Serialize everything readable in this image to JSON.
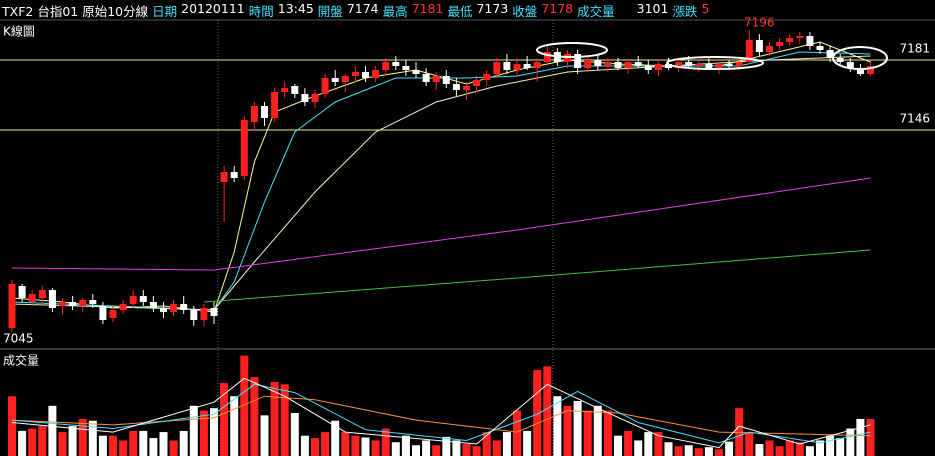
{
  "chart_data": {
    "type": "candlestick",
    "instrument": "TXF2 台指01 原始10分線",
    "fields": [
      {
        "label": "日期",
        "value": "20120111",
        "color": "#ffffff"
      },
      {
        "label": "時間",
        "value": "13:45",
        "color": "#ffffff"
      },
      {
        "label": "開盤",
        "value": 7174,
        "color": "#ffffff"
      },
      {
        "label": "最高",
        "value": 7181,
        "color": "#ff3030"
      },
      {
        "label": "最低",
        "value": 7173,
        "color": "#ffffff"
      },
      {
        "label": "收盤",
        "value": 7178,
        "color": "#ff3030"
      },
      {
        "label": "成交量",
        "value": 3101,
        "color": "#ffffff"
      },
      {
        "label": "漲跌",
        "value": 5,
        "color": "#ff3030"
      }
    ],
    "title": "K線圖",
    "up_color": "#ff2020",
    "down_color": "#ffffff",
    "open": [
      7047,
      7068,
      7060,
      7062,
      7066,
      7058,
      7060,
      7058,
      7061,
      7058,
      7052,
      7056,
      7059,
      7063,
      7060,
      7057,
      7055,
      7059,
      7056,
      7051,
      7057,
      7120,
      7125,
      7123,
      7150,
      7158,
      7152,
      7165,
      7168,
      7164,
      7160,
      7164,
      7172,
      7170,
      7173,
      7175,
      7172,
      7176,
      7180,
      7178,
      7176,
      7174,
      7170,
      7173,
      7169,
      7166,
      7168,
      7171,
      7174,
      7180,
      7176,
      7179,
      7177,
      7180,
      7185,
      7180,
      7184,
      7177,
      7181,
      7178,
      7180,
      7177,
      7180,
      7178,
      7176,
      7179,
      7177,
      7180,
      7178,
      7179,
      7177,
      7179,
      7178,
      7180,
      7191,
      7185,
      7188,
      7190,
      7192,
      7193,
      7188,
      7186,
      7182,
      7180,
      7177,
      7174
    ],
    "high": [
      7071,
      7069,
      7066,
      7068,
      7067,
      7062,
      7063,
      7062,
      7064,
      7060,
      7058,
      7061,
      7066,
      7066,
      7063,
      7060,
      7061,
      7063,
      7058,
      7059,
      7060,
      7128,
      7128,
      7153,
      7160,
      7160,
      7167,
      7170,
      7169,
      7167,
      7166,
      7174,
      7176,
      7174,
      7178,
      7178,
      7178,
      7182,
      7183,
      7181,
      7180,
      7177,
      7175,
      7176,
      7172,
      7170,
      7173,
      7176,
      7182,
      7184,
      7182,
      7183,
      7182,
      7188,
      7187,
      7186,
      7186,
      7183,
      7184,
      7182,
      7182,
      7181,
      7183,
      7181,
      7180,
      7182,
      7181,
      7183,
      7181,
      7182,
      7180,
      7181,
      7182,
      7196,
      7194,
      7190,
      7192,
      7194,
      7195,
      7195,
      7190,
      7188,
      7184,
      7182,
      7179,
      7181
    ],
    "low": [
      7045,
      7060,
      7058,
      7059,
      7055,
      7054,
      7056,
      7055,
      7057,
      7049,
      7050,
      7054,
      7057,
      7058,
      7055,
      7052,
      7053,
      7054,
      7048,
      7048,
      7049,
      7100,
      7120,
      7121,
      7146,
      7148,
      7150,
      7162,
      7162,
      7158,
      7157,
      7162,
      7168,
      7165,
      7170,
      7170,
      7170,
      7173,
      7176,
      7173,
      7172,
      7168,
      7166,
      7167,
      7163,
      7161,
      7165,
      7168,
      7172,
      7174,
      7173,
      7176,
      7170,
      7178,
      7178,
      7177,
      7174,
      7175,
      7176,
      7175,
      7176,
      7174,
      7177,
      7174,
      7173,
      7176,
      7175,
      7177,
      7175,
      7176,
      7174,
      7176,
      7176,
      7179,
      7183,
      7183,
      7186,
      7188,
      7189,
      7186,
      7184,
      7180,
      7178,
      7175,
      7173,
      7173
    ],
    "close": [
      7069,
      7062,
      7064,
      7066,
      7057,
      7060,
      7058,
      7061,
      7059,
      7051,
      7056,
      7059,
      7063,
      7060,
      7057,
      7055,
      7059,
      7056,
      7051,
      7057,
      7053,
      7125,
      7122,
      7151,
      7158,
      7152,
      7165,
      7167,
      7164,
      7160,
      7164,
      7172,
      7170,
      7173,
      7175,
      7172,
      7176,
      7180,
      7178,
      7176,
      7174,
      7170,
      7173,
      7169,
      7166,
      7168,
      7171,
      7174,
      7180,
      7176,
      7179,
      7177,
      7180,
      7185,
      7180,
      7184,
      7177,
      7181,
      7178,
      7180,
      7177,
      7180,
      7178,
      7176,
      7179,
      7177,
      7180,
      7178,
      7179,
      7177,
      7179,
      7178,
      7180,
      7191,
      7185,
      7188,
      7190,
      7192,
      7193,
      7188,
      7186,
      7182,
      7180,
      7177,
      7174,
      7178
    ],
    "ylim": [
      7037,
      7201
    ],
    "yticks": [
      7181,
      7146
    ],
    "high_label": 7196,
    "low_label": 7045,
    "ma_lines": [
      {
        "color": "#ffff80",
        "x": [
          0,
          5,
          10,
          15,
          20,
          22,
          24,
          26,
          30,
          35,
          40,
          45,
          50,
          55,
          60,
          65,
          70,
          75,
          80,
          85
        ],
        "values": [
          7062,
          7060,
          7057,
          7058,
          7055,
          7085,
          7130,
          7155,
          7163,
          7172,
          7176,
          7169,
          7176,
          7181,
          7179,
          7178,
          7178,
          7184,
          7190,
          7180
        ]
      },
      {
        "color": "#40e0ff",
        "x": [
          0,
          10,
          20,
          22,
          25,
          28,
          32,
          38,
          45,
          50,
          55,
          65,
          72,
          78,
          85
        ],
        "values": [
          7060,
          7058,
          7056,
          7070,
          7110,
          7145,
          7160,
          7172,
          7172,
          7173,
          7178,
          7178,
          7178,
          7185,
          7184
        ]
      },
      {
        "color": "#f0f0c0",
        "x": [
          0,
          20,
          24,
          30,
          36,
          42,
          48,
          55,
          65,
          75,
          85
        ],
        "values": [
          7059,
          7056,
          7080,
          7115,
          7145,
          7160,
          7168,
          7175,
          7178,
          7181,
          7183
        ]
      },
      {
        "color": "#e040e0",
        "x": [
          0,
          20,
          50,
          85
        ],
        "values": [
          7077,
          7076,
          7096,
          7122
        ]
      },
      {
        "color": "#40c040",
        "x": [
          19,
          50,
          85
        ],
        "values": [
          7060,
          7072,
          7086
        ]
      }
    ],
    "volume": {
      "title": "成交量",
      "values": [
        5000,
        2100,
        2300,
        2500,
        4200,
        2000,
        2500,
        3100,
        2950,
        1700,
        1700,
        1300,
        2100,
        2100,
        1500,
        2000,
        1300,
        2100,
        4200,
        3800,
        4000,
        6100,
        5000,
        8400,
        6600,
        3400,
        6200,
        6000,
        3600,
        1700,
        1500,
        2000,
        2950,
        2000,
        1700,
        1550,
        1300,
        2300,
        1150,
        1700,
        900,
        1300,
        900,
        1600,
        1300,
        1000,
        820,
        2000,
        1300,
        2000,
        3800,
        2100,
        7200,
        7500,
        5000,
        4200,
        4600,
        3800,
        4200,
        3800,
        1700,
        2100,
        1300,
        2000,
        2000,
        1150,
        820,
        900,
        650,
        740,
        570,
        1200,
        4000,
        2000,
        1000,
        1300,
        820,
        1300,
        1150,
        820,
        1300,
        1700,
        1500,
        2300,
        3100,
        3101
      ],
      "ylim": [
        0,
        8700
      ],
      "ma_lines": [
        {
          "color": "#ff9030",
          "x": [
            0,
            10,
            20,
            25,
            30,
            40,
            50,
            55,
            60,
            70,
            75,
            85
          ],
          "values": [
            3000,
            2600,
            3200,
            5000,
            4700,
            3000,
            2000,
            3800,
            3600,
            2000,
            1900,
            1700
          ]
        },
        {
          "color": "#40e0ff",
          "x": [
            0,
            10,
            20,
            24,
            28,
            35,
            45,
            52,
            56,
            62,
            70,
            73,
            80,
            85
          ],
          "values": [
            3000,
            2300,
            3500,
            6000,
            5300,
            2200,
            1300,
            3500,
            5400,
            2800,
            1100,
            2000,
            1100,
            2000
          ]
        },
        {
          "color": "#ffffff",
          "x": [
            0,
            10,
            20,
            23,
            27,
            33,
            46,
            53,
            58,
            64,
            70,
            72,
            78,
            85
          ],
          "values": [
            2800,
            2000,
            4500,
            6500,
            5000,
            2000,
            1000,
            6000,
            4000,
            1700,
            700,
            2500,
            1000,
            2600
          ]
        }
      ]
    }
  }
}
